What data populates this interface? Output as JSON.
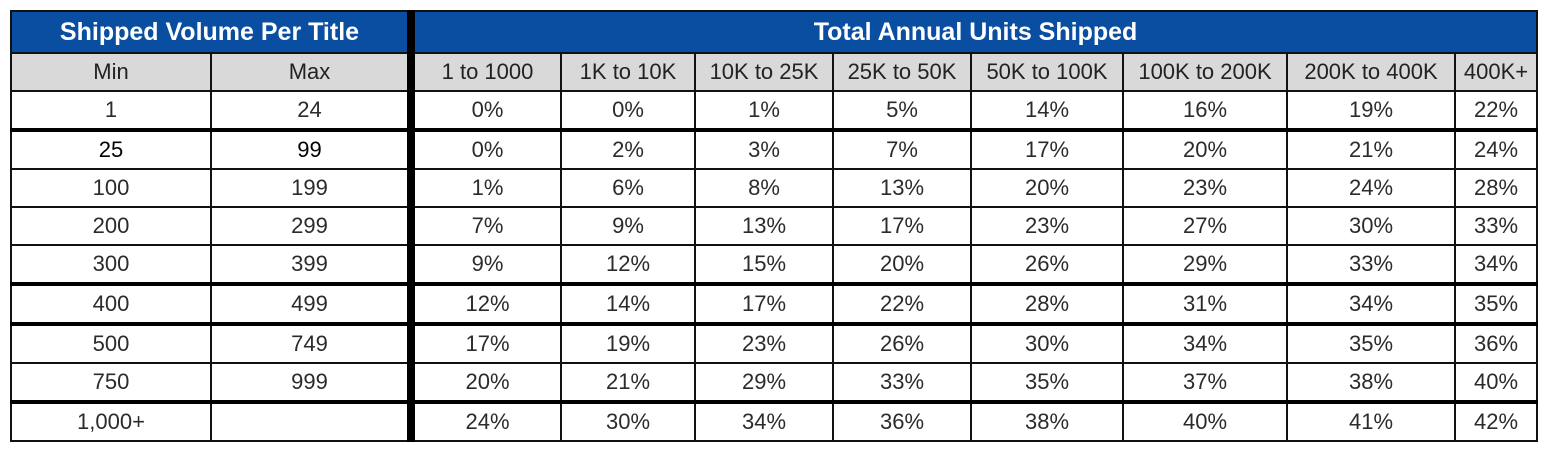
{
  "chart_data": {
    "type": "table",
    "group_headers": {
      "left": "Shipped Volume Per Title",
      "right": "Total Annual Units Shipped"
    },
    "columns": [
      "Min",
      "Max",
      "1 to 1000",
      "1K to 10K",
      "10K to 25K",
      "25K to 50K",
      "50K to 100K",
      "100K to 200K",
      "200K to 400K",
      "400K+"
    ],
    "rows": [
      [
        "1",
        "24",
        "0%",
        "0%",
        "1%",
        "5%",
        "14%",
        "16%",
        "19%",
        "22%"
      ],
      [
        "25",
        "99",
        "0%",
        "2%",
        "3%",
        "7%",
        "17%",
        "20%",
        "21%",
        "24%"
      ],
      [
        "100",
        "199",
        "1%",
        "6%",
        "8%",
        "13%",
        "20%",
        "23%",
        "24%",
        "28%"
      ],
      [
        "200",
        "299",
        "7%",
        "9%",
        "13%",
        "17%",
        "23%",
        "27%",
        "30%",
        "33%"
      ],
      [
        "300",
        "399",
        "9%",
        "12%",
        "15%",
        "20%",
        "26%",
        "29%",
        "33%",
        "34%"
      ],
      [
        "400",
        "499",
        "12%",
        "14%",
        "17%",
        "22%",
        "28%",
        "31%",
        "34%",
        "35%"
      ],
      [
        "500",
        "749",
        "17%",
        "19%",
        "23%",
        "26%",
        "30%",
        "34%",
        "35%",
        "36%"
      ],
      [
        "750",
        "999",
        "20%",
        "21%",
        "29%",
        "33%",
        "35%",
        "37%",
        "38%",
        "40%"
      ],
      [
        "1,000+",
        "",
        "24%",
        "30%",
        "34%",
        "36%",
        "38%",
        "40%",
        "41%",
        "42%"
      ]
    ],
    "colors": {
      "header_background": "#0a4ea2",
      "header_text": "#ffffff",
      "subheader_background": "#d9d9d9"
    }
  }
}
